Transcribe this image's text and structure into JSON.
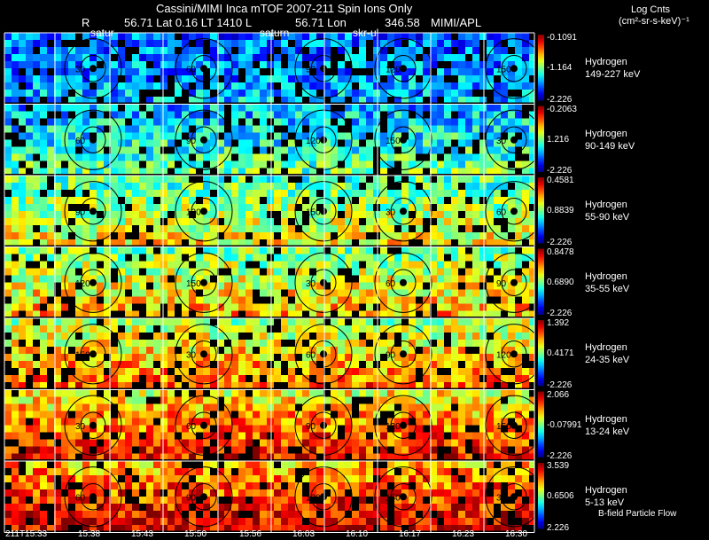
{
  "header": {
    "title": "Cassini/MIMI Inca mTOF  2007-211   Spin   Ions Only",
    "line2": {
      "r": "R",
      "lat_value": "56.71 Lat 0.16 LT 1410 L",
      "lon": "56.71 Lon",
      "lon_value": "346.58",
      "credit": "MIMI/APL"
    },
    "overlay_labels": [
      "satur",
      "saturn",
      "skr-ul"
    ]
  },
  "legend": {
    "title": "Log Cnts",
    "units": "(cm²-sr-s-keV)⁻¹",
    "footer": "B-field Particle Flow"
  },
  "bands": [
    {
      "species": "Hydrogen",
      "energy": "149-227 keV",
      "max": "-0.1091",
      "mid": "-1.164",
      "min": "-2.226"
    },
    {
      "species": "Hydrogen",
      "energy": "90-149 keV",
      "max": "-0.2063",
      "mid": "1.216",
      "min": "-2.226"
    },
    {
      "species": "Hydrogen",
      "energy": "55-90 keV",
      "max": "0.4581",
      "mid": "0.8839",
      "min": "-2.226"
    },
    {
      "species": "Hydrogen",
      "energy": "35-55 keV",
      "max": "0.8478",
      "mid": "0.6890",
      "min": "-2.226"
    },
    {
      "species": "Hydrogen",
      "energy": "24-35 keV",
      "max": "1.392",
      "mid": "0.4171",
      "min": "-2.226"
    },
    {
      "species": "Hydrogen",
      "energy": "13-24 keV",
      "max": "2.066",
      "mid": "-0.07991",
      "min": "-2.226"
    },
    {
      "species": "Hydrogen",
      "energy": "5-13 keV",
      "max": "3.539",
      "mid": "0.6506",
      "min": "2.226"
    }
  ],
  "time_ticks": [
    "211T15:33",
    "15:38",
    "15:43",
    "15:50",
    "15:56",
    "16:03",
    "16:10",
    "16:17",
    "16:23",
    "16:30"
  ],
  "contour_labels": [
    "30",
    "60",
    "90",
    "120",
    "150"
  ]
}
